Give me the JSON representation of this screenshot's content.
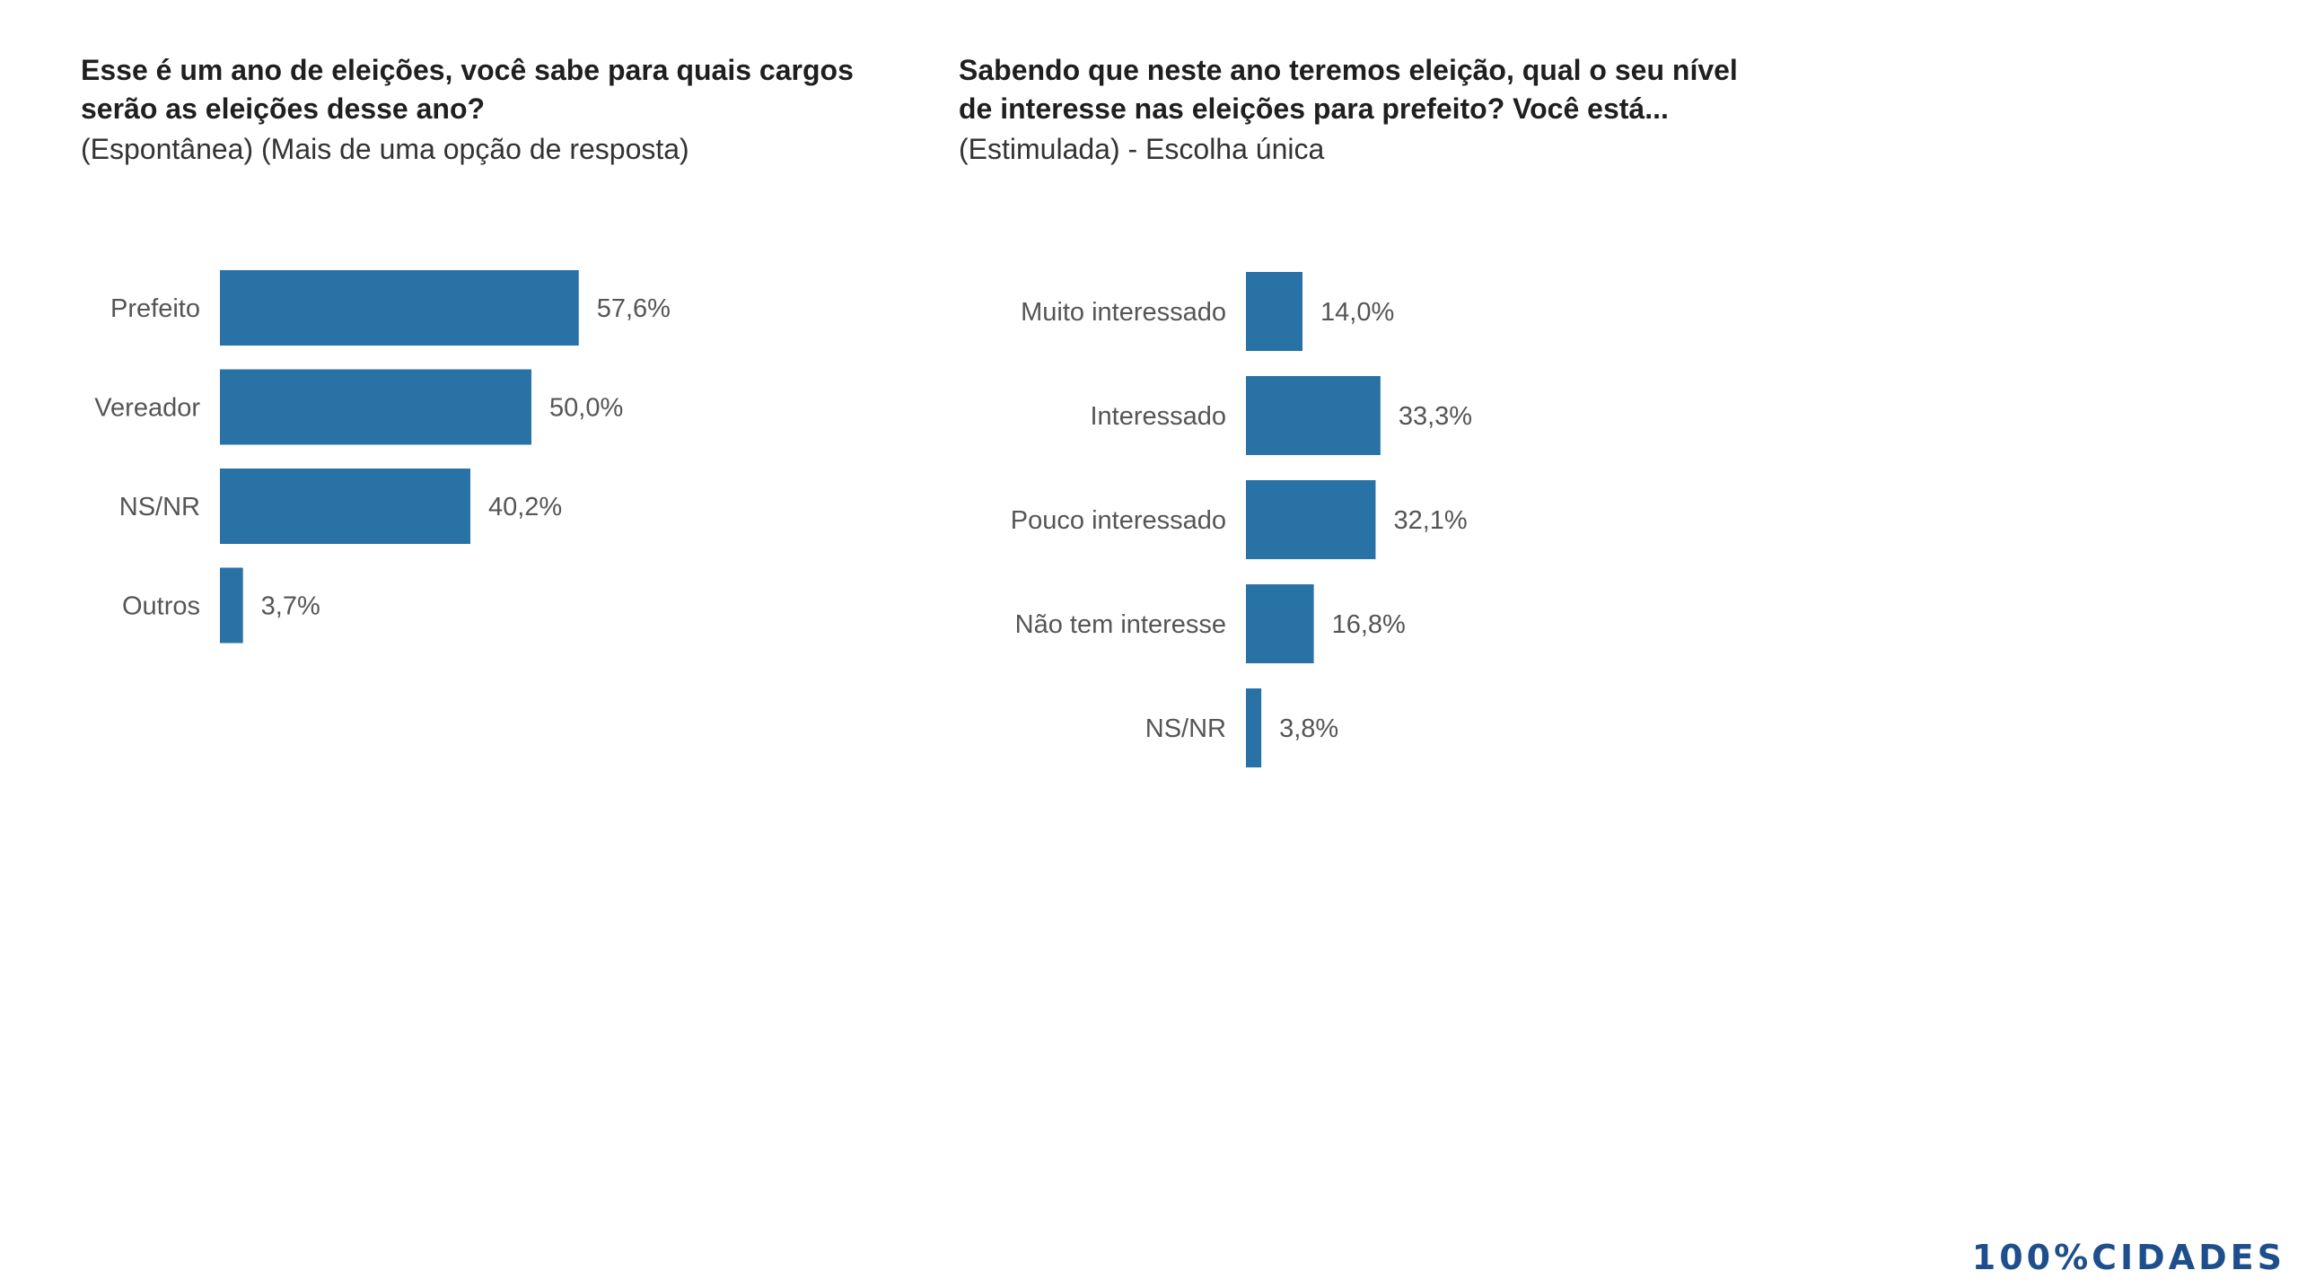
{
  "left_panel": {
    "title_line1": "Esse é um ano de eleições, você sabe para quais cargos",
    "title_line2": "serão as eleições desse ano?",
    "subtitle": "(Espontânea) (Mais de uma opção de resposta)"
  },
  "right_panel": {
    "title_line1": "Sabendo que neste ano teremos eleição, qual o seu nível",
    "title_line2": "de interesse nas eleições para prefeito? Você está...",
    "subtitle": "(Estimulada) - Escolha única"
  },
  "colors": {
    "bar": "#2872A6",
    "brand": "#1E4F8C"
  },
  "brand": {
    "logo_text": "100%CIDADES"
  },
  "chart_data": [
    {
      "type": "bar",
      "orientation": "horizontal",
      "categories": [
        "Prefeito",
        "Vereador",
        "NS/NR",
        "Outros"
      ],
      "values": [
        57.6,
        50.0,
        40.2,
        3.7
      ],
      "value_labels": [
        "57,6%",
        "50,0%",
        "40,2%",
        "3,7%"
      ],
      "unit": "%",
      "grid": false,
      "legend": "none"
    },
    {
      "type": "bar",
      "orientation": "horizontal",
      "categories": [
        "Muito interessado",
        "Interessado",
        "Pouco interessado",
        "Não tem interesse",
        "NS/NR"
      ],
      "values": [
        14.0,
        33.3,
        32.1,
        16.8,
        3.8
      ],
      "value_labels": [
        "14,0%",
        "33,3%",
        "32,1%",
        "16,8%",
        "3,8%"
      ],
      "unit": "%",
      "grid": false,
      "legend": "none"
    }
  ]
}
